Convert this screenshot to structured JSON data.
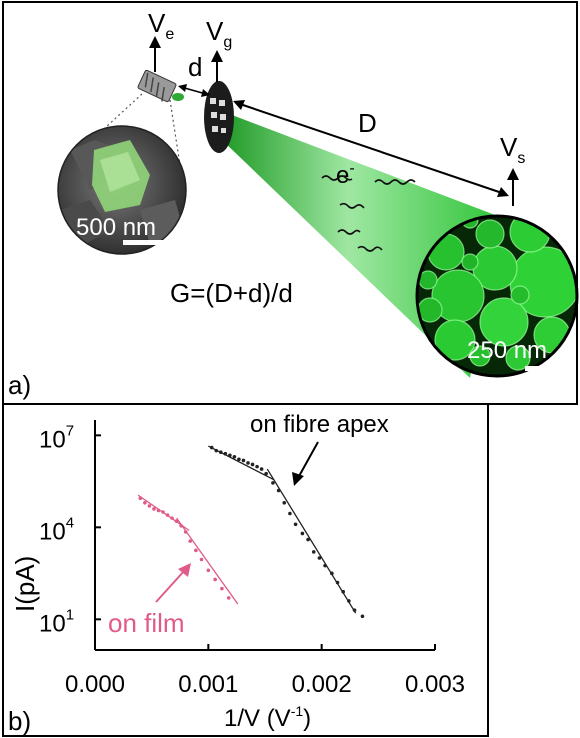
{
  "panel_a": {
    "label": "a)",
    "ve": "V",
    "ve_sub": "e",
    "vg": "V",
    "vg_sub": "g",
    "vs": "V",
    "vs_sub": "s",
    "d": "d",
    "D": "D",
    "electron": "e",
    "electron_sup": "-",
    "formula": "G=(D+d)/d",
    "scalebar_left": "500 nm",
    "scalebar_right": "250 nm",
    "colors": {
      "green": "#22c02a",
      "dark_green": "#0a3d0a"
    }
  },
  "panel_b": {
    "label": "b)",
    "annotation_fibre": "on fibre apex",
    "annotation_film": "on film",
    "colors": {
      "fibre": "#222222",
      "film": "#e05a8a"
    }
  },
  "chart_data": {
    "type": "scatter",
    "xlabel": "1/V (V",
    "xlabel_sup": "-1",
    "xlabel_close": ")",
    "ylabel": "I(pA)",
    "x_ticks": [
      "0.000",
      "0.001",
      "0.002",
      "0.003"
    ],
    "y_ticks": [
      {
        "base": "10",
        "exp": "7"
      },
      {
        "base": "10",
        "exp": "4"
      },
      {
        "base": "10",
        "exp": "1"
      }
    ],
    "xlim": [
      0,
      0.003
    ],
    "y_scale": "log",
    "ylim_log10": [
      0,
      7.5
    ],
    "grid": false,
    "series": [
      {
        "name": "on fibre apex",
        "color": "#222222",
        "points": [
          [
            0.00103,
            6.6
          ],
          [
            0.00107,
            6.5
          ],
          [
            0.00111,
            6.45
          ],
          [
            0.00115,
            6.4
          ],
          [
            0.00119,
            6.35
          ],
          [
            0.00123,
            6.3
          ],
          [
            0.00127,
            6.22
          ],
          [
            0.00131,
            6.18
          ],
          [
            0.00135,
            6.1
          ],
          [
            0.00139,
            6.05
          ],
          [
            0.00143,
            5.98
          ],
          [
            0.00147,
            5.9
          ],
          [
            0.00151,
            5.75
          ],
          [
            0.00157,
            5.45
          ],
          [
            0.00162,
            5.2
          ],
          [
            0.00167,
            4.8
          ],
          [
            0.00172,
            4.45
          ],
          [
            0.00177,
            4.1
          ],
          [
            0.00183,
            3.8
          ],
          [
            0.00188,
            3.6
          ],
          [
            0.00193,
            3.2
          ],
          [
            0.00198,
            3.0
          ],
          [
            0.00203,
            2.75
          ],
          [
            0.00209,
            2.5
          ],
          [
            0.00214,
            2.2
          ],
          [
            0.00219,
            1.9
          ],
          [
            0.00224,
            1.6
          ],
          [
            0.00229,
            1.3
          ],
          [
            0.00236,
            1.1
          ]
        ],
        "fit_lines": [
          [
            [
              0.001,
              6.65
            ],
            [
              0.00158,
              5.55
            ]
          ],
          [
            [
              0.00152,
              5.9
            ],
            [
              0.0023,
              1.2
            ]
          ]
        ]
      },
      {
        "name": "on film",
        "color": "#e05a8a",
        "points": [
          [
            0.0004,
            4.95
          ],
          [
            0.00044,
            4.8
          ],
          [
            0.00048,
            4.7
          ],
          [
            0.00052,
            4.6
          ],
          [
            0.00056,
            4.55
          ],
          [
            0.0006,
            4.5
          ],
          [
            0.00064,
            4.4
          ],
          [
            0.00068,
            4.3
          ],
          [
            0.00072,
            4.2
          ],
          [
            0.00076,
            4.05
          ],
          [
            0.0008,
            3.85
          ],
          [
            0.00084,
            3.55
          ],
          [
            0.00089,
            3.25
          ],
          [
            0.00094,
            2.95
          ],
          [
            0.001,
            2.6
          ],
          [
            0.00106,
            2.3
          ],
          [
            0.00112,
            2.0
          ],
          [
            0.00118,
            1.7
          ]
        ],
        "fit_lines": [
          [
            [
              0.00038,
              5.05
            ],
            [
              0.00083,
              3.9
            ]
          ],
          [
            [
              0.00072,
              4.3
            ],
            [
              0.00126,
              1.5
            ]
          ]
        ]
      }
    ]
  }
}
